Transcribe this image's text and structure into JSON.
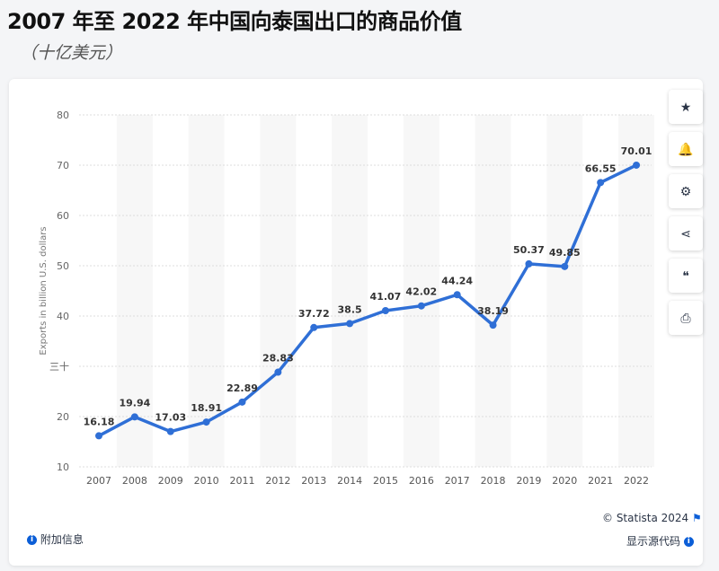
{
  "header": {
    "title": "2007 年至 2022 年中国向泰国出口的商品价值",
    "subtitle": "（十亿美元）"
  },
  "toolbar": [
    {
      "icon": "star-icon",
      "glyph": "★"
    },
    {
      "icon": "bell-icon",
      "glyph": "🔔"
    },
    {
      "icon": "gear-icon",
      "glyph": "⚙"
    },
    {
      "icon": "share-icon",
      "glyph": "⋖"
    },
    {
      "icon": "quote-icon",
      "glyph": "❝"
    },
    {
      "icon": "print-icon",
      "glyph": "⎙"
    }
  ],
  "footer": {
    "copyright": "© Statista 2024",
    "additional_info": "附加信息",
    "show_source": "显示源代码"
  },
  "chart_data": {
    "type": "line",
    "title": "",
    "xlabel": "",
    "ylabel": "Exports in billion U.S. dollars",
    "categories": [
      "2007",
      "2008",
      "2009",
      "2010",
      "2011",
      "2012",
      "2013",
      "2014",
      "2015",
      "2016",
      "2017",
      "2018",
      "2019",
      "2020",
      "2021",
      "2022"
    ],
    "values": [
      16.18,
      19.94,
      17.03,
      18.91,
      22.89,
      28.83,
      37.72,
      38.5,
      41.07,
      42.02,
      44.24,
      38.19,
      50.37,
      49.85,
      66.55,
      70.01
    ],
    "data_labels": [
      "16.18",
      "19.94",
      "17.03",
      "18.91",
      "22.89",
      "28.83",
      "37.72",
      "38.5",
      "41.07",
      "42.02",
      "44.24",
      "38.19",
      "50.37",
      "49.85",
      "66.55",
      "70.01"
    ],
    "ylim": [
      10,
      80
    ],
    "yticks": [
      10,
      20,
      30,
      40,
      50,
      60,
      70,
      80
    ],
    "ytick_labels": [
      "10",
      "20",
      "三十",
      "40",
      "50",
      "60",
      "70",
      "80"
    ],
    "grid": true,
    "color": "#2f6fd6"
  }
}
